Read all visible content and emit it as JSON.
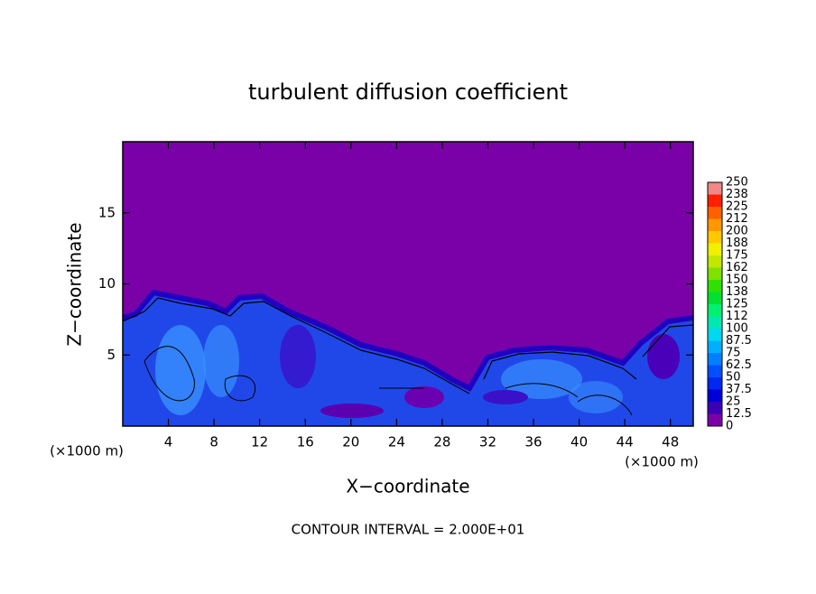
{
  "chart_data": {
    "type": "contour",
    "title": "turbulent diffusion coefficient",
    "xlabel": "X−coordinate",
    "ylabel": "Z−coordinate",
    "x_unit": "(×1000 m)",
    "footer": "CONTOUR INTERVAL = 2.000E+01",
    "xlim": [
      0,
      50
    ],
    "xticks": [
      4,
      8,
      12,
      16,
      20,
      24,
      28,
      32,
      36,
      40,
      44,
      48
    ],
    "ylim": [
      0,
      20
    ],
    "yticks": [
      5,
      10,
      15
    ],
    "colorbar": {
      "levels": [
        0,
        12.5,
        25,
        37.5,
        50,
        62.5,
        75,
        87.5,
        100,
        112,
        125,
        138,
        150,
        162,
        175,
        188,
        200,
        212,
        225,
        238,
        250
      ],
      "colors": [
        "#7a00a8",
        "#3c00b4",
        "#0000d8",
        "#0028f0",
        "#0050ff",
        "#0080ff",
        "#00b0ff",
        "#00d8f0",
        "#00e8b0",
        "#00f070",
        "#00e030",
        "#30e000",
        "#80e000",
        "#c0e800",
        "#f0f000",
        "#ffc800",
        "#ff9800",
        "#ff6000",
        "#ff2000",
        "#f08888"
      ]
    }
  }
}
